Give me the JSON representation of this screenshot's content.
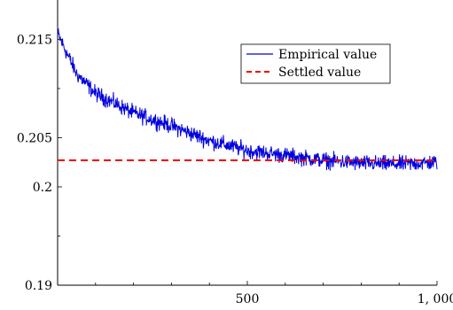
{
  "chart_data": {
    "type": "line",
    "title": "",
    "xlabel": "",
    "ylabel": "",
    "xlim": [
      0,
      1000
    ],
    "ylim": [
      0.19,
      0.219
    ],
    "x_ticks": [
      500,
      1000
    ],
    "x_tick_labels": [
      "500",
      "1, 000"
    ],
    "x_minor_ticks": [
      100,
      200,
      300,
      400,
      600,
      700,
      800,
      900
    ],
    "y_ticks": [
      0.19,
      0.2,
      0.205,
      0.215
    ],
    "y_tick_labels": [
      "0.19",
      "0.2",
      "0.205",
      "0.215"
    ],
    "y_minor_ticks": [
      0.195,
      0.21
    ],
    "grid": false,
    "legend_position": "top-right",
    "series": [
      {
        "name": "Empirical value",
        "color": "#0000dd",
        "style": "solid",
        "x_range": [
          1,
          1000
        ],
        "trend_points": [
          {
            "x": 1,
            "y": 0.2155
          },
          {
            "x": 50,
            "y": 0.2115
          },
          {
            "x": 100,
            "y": 0.2095
          },
          {
            "x": 200,
            "y": 0.2075
          },
          {
            "x": 300,
            "y": 0.2062
          },
          {
            "x": 400,
            "y": 0.2047
          },
          {
            "x": 500,
            "y": 0.2037
          },
          {
            "x": 600,
            "y": 0.2032
          },
          {
            "x": 700,
            "y": 0.2027
          },
          {
            "x": 800,
            "y": 0.2024
          },
          {
            "x": 900,
            "y": 0.2023
          },
          {
            "x": 1000,
            "y": 0.2025
          }
        ],
        "noise_amplitude": 0.0012
      },
      {
        "name": "Settled value",
        "color": "#ee0000",
        "style": "dashed",
        "value": 0.2027
      }
    ]
  }
}
